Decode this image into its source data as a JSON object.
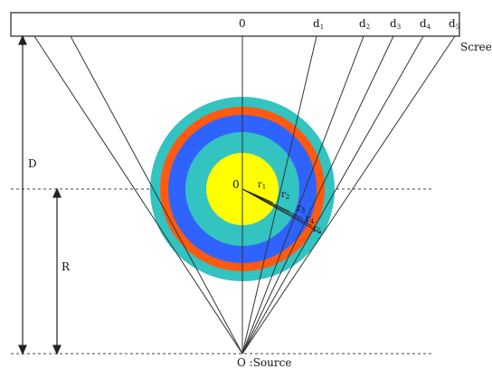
{
  "labels": {
    "screen": "Scree",
    "d": "D",
    "r": "R",
    "source": "O :Source",
    "center_top": "0",
    "center": "0"
  },
  "screen_marks": [
    {
      "base": "d",
      "sub": "1"
    },
    {
      "base": "d",
      "sub": "2"
    },
    {
      "base": "d",
      "sub": "3"
    },
    {
      "base": "d",
      "sub": "4"
    },
    {
      "base": "d",
      "sub": "5"
    }
  ],
  "radius_labels": [
    {
      "base": "r",
      "sub": "1"
    },
    {
      "base": "r",
      "sub": "2"
    },
    {
      "base": "r",
      "sub": "3"
    },
    {
      "base": "r",
      "sub": "4"
    },
    {
      "base": "r",
      "sub": "5"
    }
  ],
  "ring_colors": [
    "#33c3c0",
    "#ff5a10",
    "#2f63ff",
    "#33c3c0",
    "#ffff00"
  ]
}
